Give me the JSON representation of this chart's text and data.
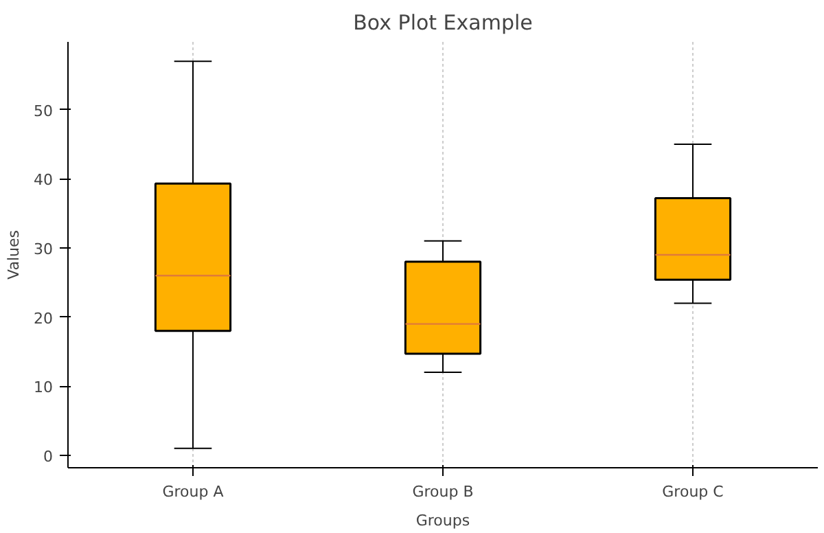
{
  "chart_data": {
    "type": "box",
    "title": "Box Plot Example",
    "xlabel": "Groups",
    "ylabel": "Values",
    "categories": [
      "Group A",
      "Group B",
      "Group C"
    ],
    "series": [
      {
        "color": "#ffb000",
        "boxes": [
          {
            "low": 1,
            "q1": 18,
            "median": 26,
            "q3": 39.3,
            "high": 57
          },
          {
            "low": 12,
            "q1": 14.7,
            "median": 19,
            "q3": 28,
            "high": 31
          },
          {
            "low": 22,
            "q1": 25.4,
            "median": 29,
            "q3": 37.2,
            "high": 45
          }
        ]
      }
    ],
    "ylim": [
      -1.8,
      59.8
    ],
    "yticks": [
      0,
      10,
      20,
      30,
      40,
      50
    ],
    "grid": "x"
  }
}
